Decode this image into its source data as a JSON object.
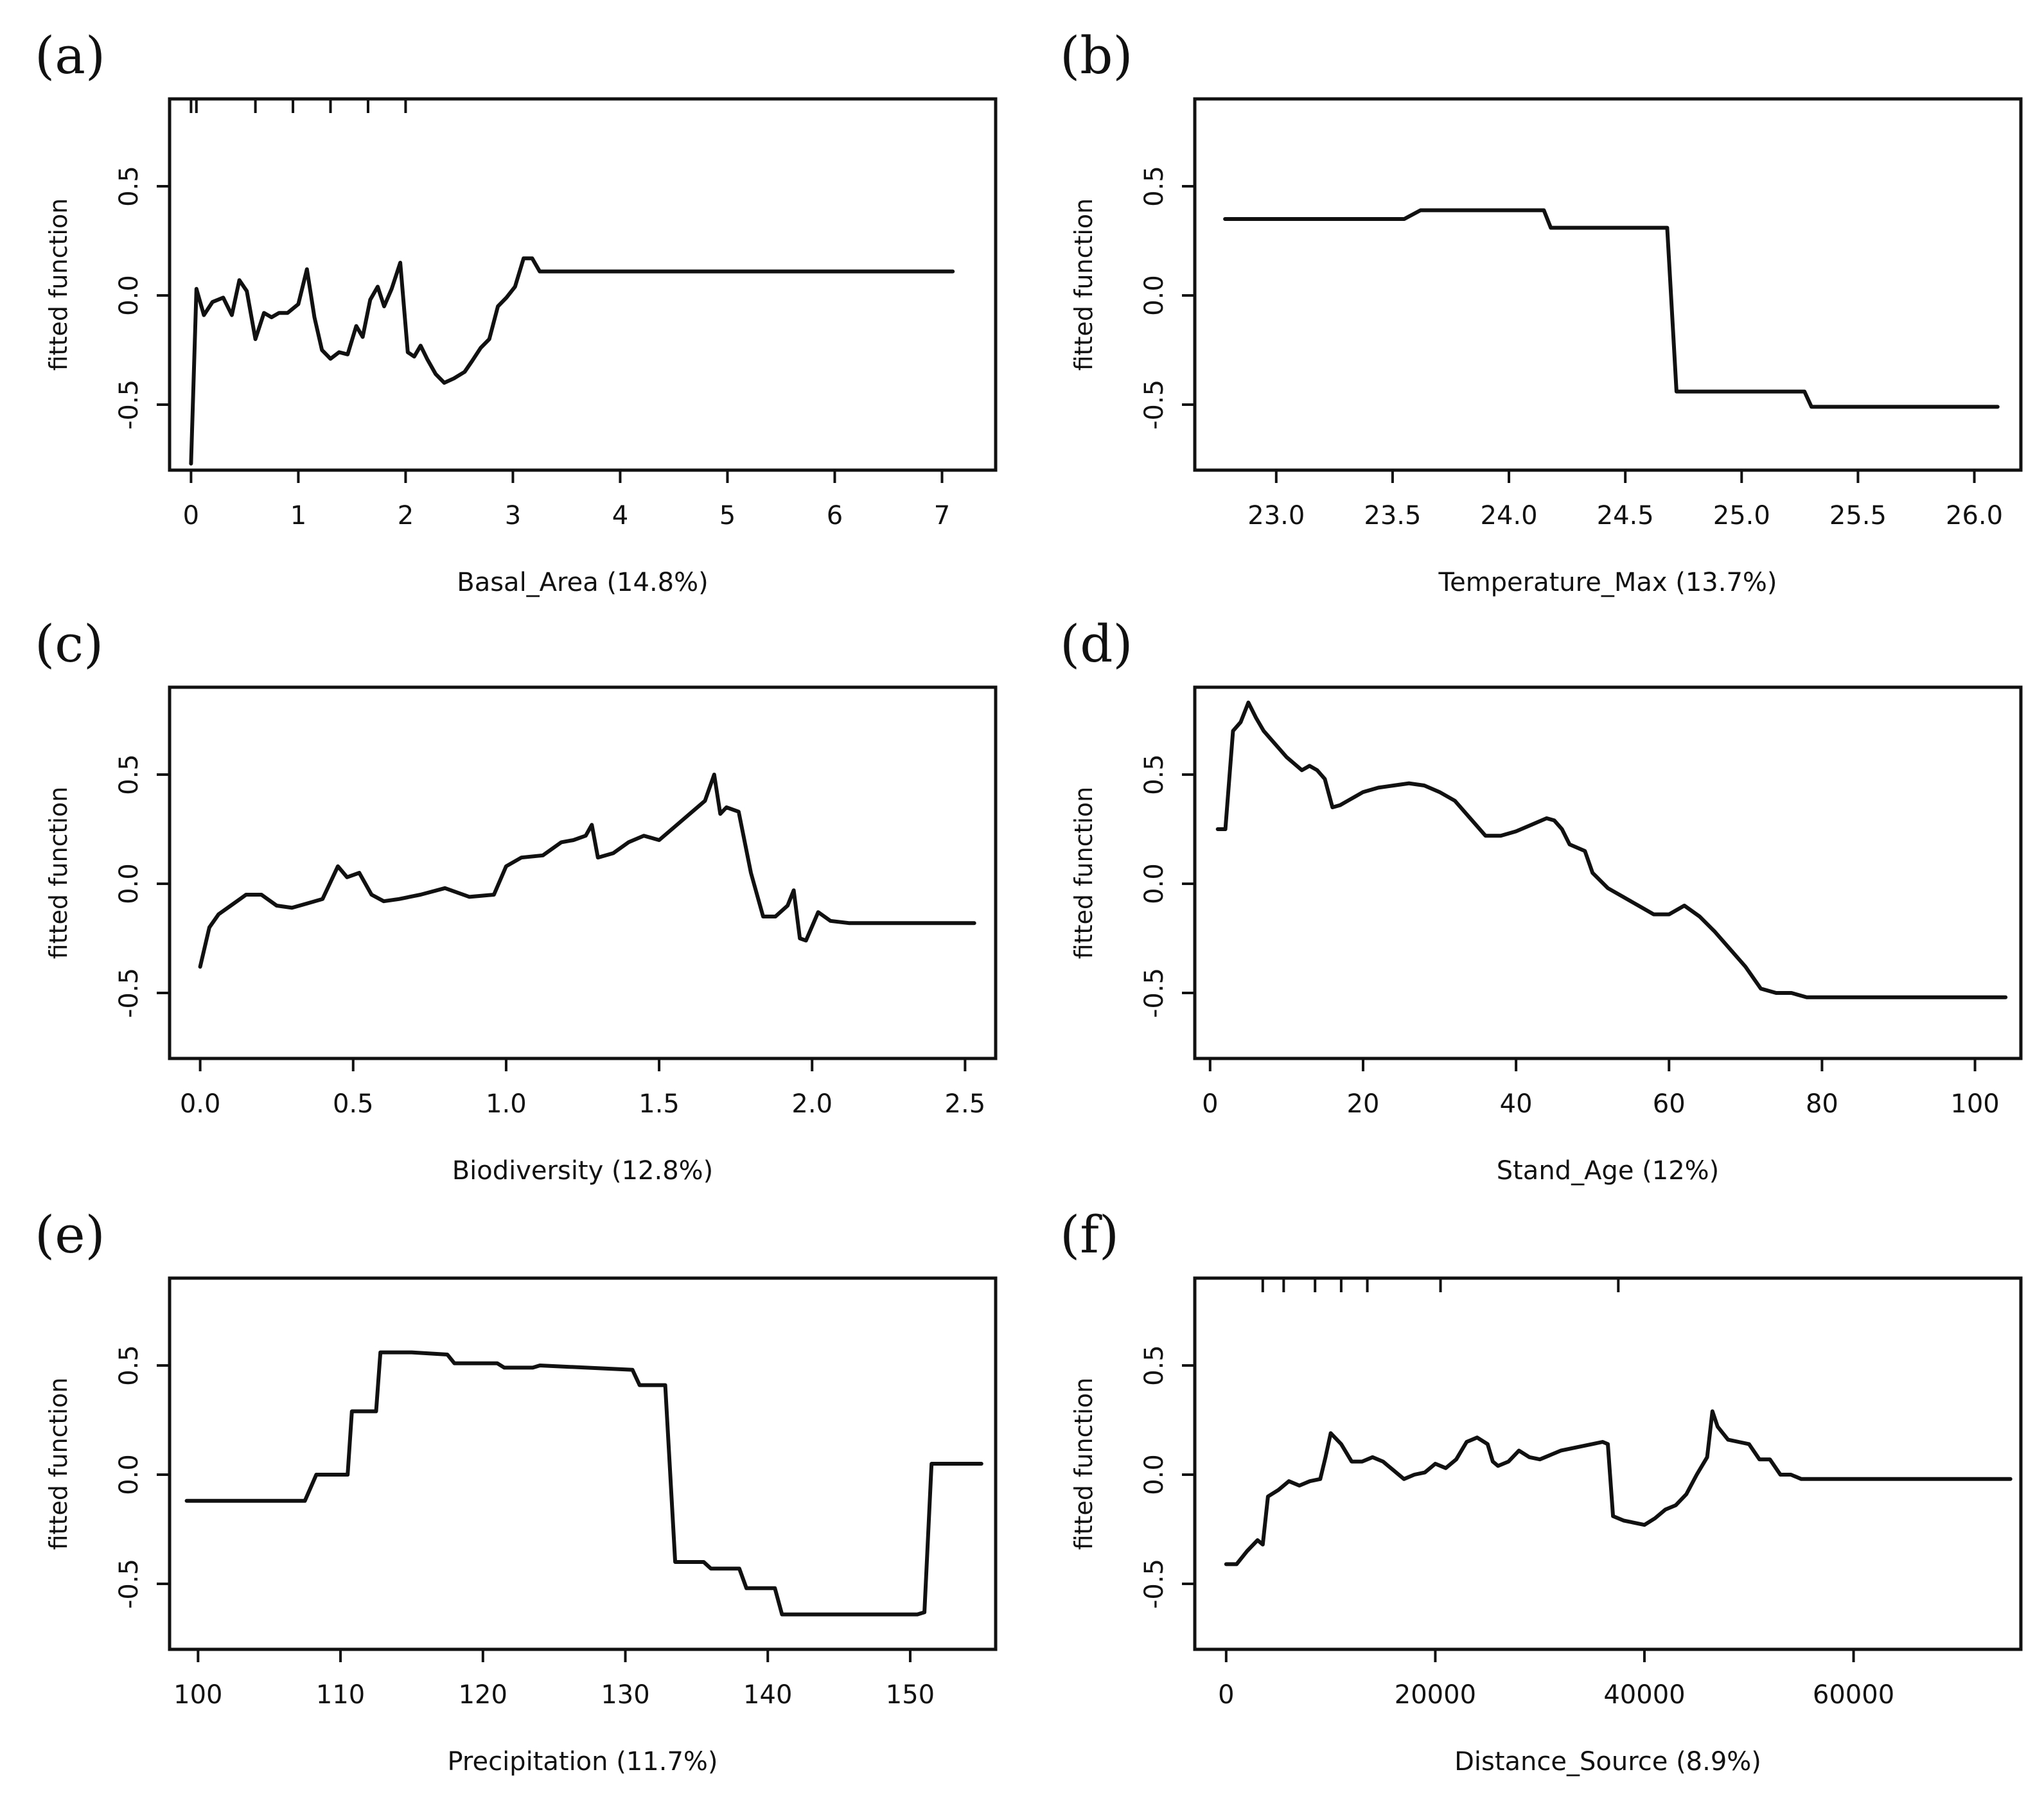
{
  "figure": {
    "panels": [
      "(a)",
      "(b)",
      "(c)",
      "(d)",
      "(e)",
      "(f)"
    ]
  },
  "chart_data": [
    {
      "type": "line",
      "panel": "(a)",
      "xlabel": "Basal_Area  (14.8%)",
      "ylabel": "fitted function",
      "xlim": [
        -0.2,
        7.5
      ],
      "ylim": [
        -0.8,
        0.9
      ],
      "xticks": [
        0,
        1,
        2,
        3,
        4,
        5,
        6,
        7
      ],
      "xtick_labels": [
        "0",
        "1",
        "2",
        "3",
        "4",
        "5",
        "6",
        "7"
      ],
      "yticks": [
        -0.5,
        0.0,
        0.5
      ],
      "ytick_labels": [
        "-0.5",
        "0.0",
        "0.5"
      ],
      "rug": [
        0.0,
        0.05,
        0.6,
        0.95,
        1.3,
        1.65,
        2.0
      ],
      "x": [
        0.0,
        0.05,
        0.12,
        0.2,
        0.3,
        0.38,
        0.45,
        0.52,
        0.6,
        0.68,
        0.75,
        0.82,
        0.9,
        1.0,
        1.08,
        1.15,
        1.22,
        1.3,
        1.38,
        1.46,
        1.54,
        1.6,
        1.67,
        1.74,
        1.8,
        1.87,
        1.95,
        2.02,
        2.08,
        2.14,
        2.2,
        2.28,
        2.36,
        2.45,
        2.55,
        2.62,
        2.7,
        2.78,
        2.86,
        2.94,
        3.02,
        3.1,
        3.18,
        3.25,
        3.32,
        3.4,
        7.1
      ],
      "y": [
        -0.77,
        0.03,
        -0.09,
        -0.03,
        -0.01,
        -0.09,
        0.07,
        0.02,
        -0.2,
        -0.08,
        -0.1,
        -0.08,
        -0.08,
        -0.04,
        0.12,
        -0.1,
        -0.25,
        -0.29,
        -0.26,
        -0.27,
        -0.14,
        -0.19,
        -0.02,
        0.04,
        -0.05,
        0.03,
        0.15,
        -0.26,
        -0.28,
        -0.23,
        -0.29,
        -0.36,
        -0.4,
        -0.38,
        -0.35,
        -0.3,
        -0.24,
        -0.2,
        -0.05,
        -0.01,
        0.04,
        0.17,
        0.17,
        0.11,
        0.11,
        0.11,
        0.11
      ]
    },
    {
      "type": "line",
      "panel": "(b)",
      "xlabel": "Temperature_Max  (13.7%)",
      "ylabel": "fitted function",
      "xlim": [
        22.65,
        26.2
      ],
      "ylim": [
        -0.8,
        0.9
      ],
      "xticks": [
        23.0,
        23.5,
        24.0,
        24.5,
        25.0,
        25.5,
        26.0
      ],
      "xtick_labels": [
        "23.0",
        "23.5",
        "24.0",
        "24.5",
        "25.0",
        "25.5",
        "26.0"
      ],
      "yticks": [
        -0.5,
        0.0,
        0.5
      ],
      "ytick_labels": [
        "-0.5",
        "0.0",
        "0.5"
      ],
      "rug": [],
      "x": [
        22.78,
        23.55,
        23.62,
        24.15,
        24.18,
        24.68,
        24.72,
        25.27,
        25.3,
        26.1
      ],
      "y": [
        0.35,
        0.35,
        0.39,
        0.39,
        0.31,
        0.31,
        -0.44,
        -0.44,
        -0.51,
        -0.51
      ]
    },
    {
      "type": "line",
      "panel": "(c)",
      "xlabel": "Biodiversity  (12.8%)",
      "ylabel": "fitted function",
      "xlim": [
        -0.1,
        2.6
      ],
      "ylim": [
        -0.8,
        0.9
      ],
      "xticks": [
        0.0,
        0.5,
        1.0,
        1.5,
        2.0,
        2.5
      ],
      "xtick_labels": [
        "0.0",
        "0.5",
        "1.0",
        "1.5",
        "2.0",
        "2.5"
      ],
      "yticks": [
        -0.5,
        0.0,
        0.5
      ],
      "ytick_labels": [
        "-0.5",
        "0.0",
        "0.5"
      ],
      "rug": [],
      "x": [
        0.0,
        0.03,
        0.06,
        0.1,
        0.15,
        0.2,
        0.25,
        0.3,
        0.35,
        0.4,
        0.45,
        0.48,
        0.52,
        0.56,
        0.6,
        0.65,
        0.72,
        0.8,
        0.88,
        0.96,
        1.0,
        1.05,
        1.12,
        1.18,
        1.22,
        1.26,
        1.28,
        1.3,
        1.35,
        1.4,
        1.45,
        1.5,
        1.55,
        1.6,
        1.65,
        1.68,
        1.7,
        1.72,
        1.76,
        1.8,
        1.84,
        1.88,
        1.92,
        1.94,
        1.96,
        1.98,
        2.02,
        2.06,
        2.12,
        2.53
      ],
      "y": [
        -0.38,
        -0.2,
        -0.14,
        -0.1,
        -0.05,
        -0.05,
        -0.1,
        -0.11,
        -0.09,
        -0.07,
        0.08,
        0.03,
        0.05,
        -0.05,
        -0.08,
        -0.07,
        -0.05,
        -0.02,
        -0.06,
        -0.05,
        0.08,
        0.12,
        0.13,
        0.19,
        0.2,
        0.22,
        0.27,
        0.12,
        0.14,
        0.19,
        0.22,
        0.2,
        0.26,
        0.32,
        0.38,
        0.5,
        0.32,
        0.35,
        0.33,
        0.05,
        -0.15,
        -0.15,
        -0.1,
        -0.03,
        -0.25,
        -0.26,
        -0.13,
        -0.17,
        -0.18,
        -0.18
      ]
    },
    {
      "type": "line",
      "panel": "(d)",
      "xlabel": "Stand_Age  (12%)",
      "ylabel": "fitted function",
      "xlim": [
        -2,
        106
      ],
      "ylim": [
        -0.8,
        0.9
      ],
      "xticks": [
        0,
        20,
        40,
        60,
        80,
        100
      ],
      "xtick_labels": [
        "0",
        "20",
        "40",
        "60",
        "80",
        "100"
      ],
      "yticks": [
        -0.5,
        0.0,
        0.5
      ],
      "ytick_labels": [
        "-0.5",
        "0.0",
        "0.5"
      ],
      "rug": [],
      "x": [
        1,
        2,
        3,
        4,
        5,
        6,
        7,
        8,
        9,
        10,
        11,
        12,
        13,
        14,
        15,
        16,
        17,
        18,
        19,
        20,
        22,
        24,
        26,
        28,
        30,
        32,
        34,
        36,
        38,
        40,
        42,
        44,
        45,
        46,
        47,
        49,
        50,
        52,
        54,
        56,
        58,
        60,
        62,
        64,
        66,
        68,
        70,
        72,
        74,
        76,
        78,
        104
      ],
      "y": [
        0.25,
        0.25,
        0.7,
        0.74,
        0.83,
        0.76,
        0.7,
        0.66,
        0.62,
        0.58,
        0.55,
        0.52,
        0.54,
        0.52,
        0.48,
        0.35,
        0.36,
        0.38,
        0.4,
        0.42,
        0.44,
        0.45,
        0.46,
        0.45,
        0.42,
        0.38,
        0.3,
        0.22,
        0.22,
        0.24,
        0.27,
        0.3,
        0.29,
        0.25,
        0.18,
        0.15,
        0.05,
        -0.02,
        -0.06,
        -0.1,
        -0.14,
        -0.14,
        -0.1,
        -0.15,
        -0.22,
        -0.3,
        -0.38,
        -0.48,
        -0.5,
        -0.5,
        -0.52,
        -0.52
      ]
    },
    {
      "type": "line",
      "panel": "(e)",
      "xlabel": "Precipitation  (11.7%)",
      "ylabel": "fitted function",
      "xlim": [
        98,
        156
      ],
      "ylim": [
        -0.8,
        0.9
      ],
      "xticks": [
        100,
        110,
        120,
        130,
        140,
        150
      ],
      "xtick_labels": [
        "100",
        "110",
        "120",
        "130",
        "140",
        "150"
      ],
      "yticks": [
        -0.5,
        0.0,
        0.5
      ],
      "ytick_labels": [
        "-0.5",
        "0.0",
        "0.5"
      ],
      "rug": [],
      "x": [
        99.2,
        107.5,
        108.3,
        110.5,
        110.8,
        112.5,
        112.8,
        115.0,
        117.5,
        118.0,
        121.0,
        121.5,
        123.5,
        124.0,
        130.5,
        131.0,
        132.8,
        133.5,
        135.5,
        136.0,
        138.0,
        138.5,
        140.5,
        141.0,
        150.5,
        151.0,
        151.5,
        155.0
      ],
      "y": [
        -0.12,
        -0.12,
        0.0,
        0.0,
        0.29,
        0.29,
        0.56,
        0.56,
        0.55,
        0.51,
        0.51,
        0.49,
        0.49,
        0.5,
        0.48,
        0.41,
        0.41,
        -0.4,
        -0.4,
        -0.43,
        -0.43,
        -0.52,
        -0.52,
        -0.64,
        -0.64,
        -0.63,
        0.05,
        0.05
      ]
    },
    {
      "type": "line",
      "panel": "(f)",
      "xlabel": "Distance_Source  (8.9%)",
      "ylabel": "fitted function",
      "xlim": [
        -3000,
        76000
      ],
      "ylim": [
        -0.8,
        0.9
      ],
      "xticks": [
        0,
        20000,
        40000,
        60000
      ],
      "xtick_labels": [
        "0",
        "20000",
        "40000",
        "60000"
      ],
      "yticks": [
        -0.5,
        0.0,
        0.5
      ],
      "ytick_labels": [
        "-0.5",
        "0.0",
        "0.5"
      ],
      "rug": [
        3500,
        5500,
        8500,
        11000,
        13500,
        20500,
        37500
      ],
      "x": [
        0,
        1000,
        2000,
        3000,
        3500,
        4000,
        5000,
        6000,
        7000,
        8000,
        9000,
        9500,
        10000,
        11000,
        12000,
        13000,
        14000,
        15000,
        16000,
        17000,
        18000,
        19000,
        20000,
        21000,
        22000,
        23000,
        24000,
        25000,
        25500,
        26000,
        27000,
        28000,
        29000,
        30000,
        31000,
        32000,
        33000,
        34000,
        35000,
        36000,
        36500,
        37000,
        38000,
        39000,
        40000,
        41000,
        42000,
        43000,
        44000,
        45000,
        46000,
        46500,
        47000,
        48000,
        49000,
        50000,
        51000,
        52000,
        53000,
        54000,
        55000,
        56000,
        75000
      ],
      "y": [
        -0.41,
        -0.41,
        -0.35,
        -0.3,
        -0.32,
        -0.1,
        -0.07,
        -0.03,
        -0.05,
        -0.03,
        -0.02,
        0.08,
        0.19,
        0.14,
        0.06,
        0.06,
        0.08,
        0.06,
        0.02,
        -0.02,
        0.0,
        0.01,
        0.05,
        0.03,
        0.07,
        0.15,
        0.17,
        0.14,
        0.06,
        0.04,
        0.06,
        0.11,
        0.08,
        0.07,
        0.09,
        0.11,
        0.12,
        0.13,
        0.14,
        0.15,
        0.14,
        -0.19,
        -0.21,
        -0.22,
        -0.23,
        -0.2,
        -0.16,
        -0.14,
        -0.09,
        0.0,
        0.08,
        0.29,
        0.22,
        0.16,
        0.15,
        0.14,
        0.07,
        0.07,
        0.0,
        0.0,
        -0.02,
        -0.02,
        -0.02
      ]
    }
  ]
}
